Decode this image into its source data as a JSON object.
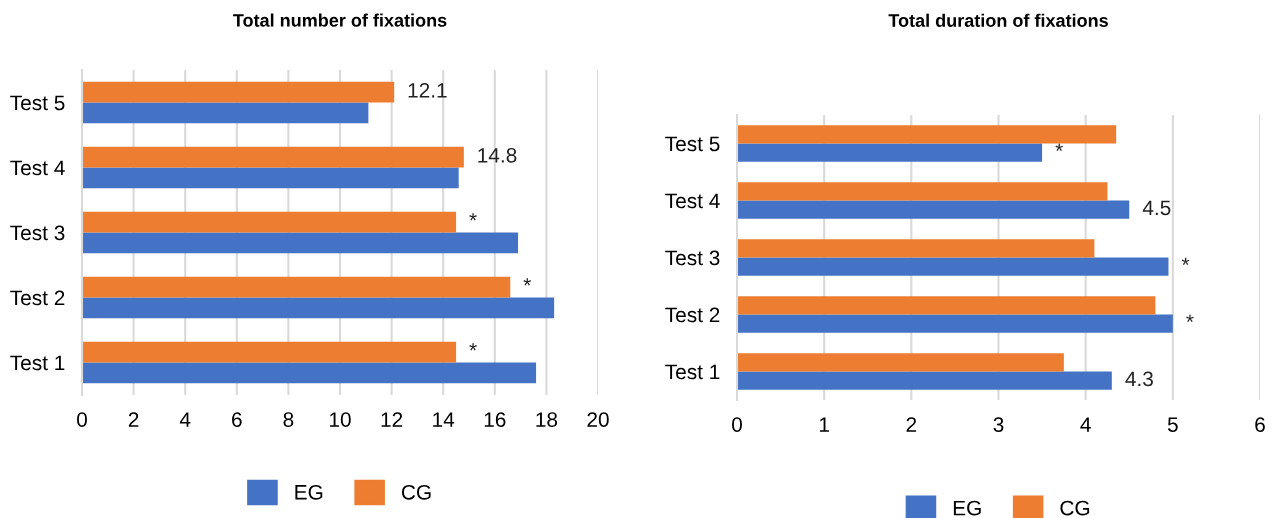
{
  "chart_data": [
    {
      "type": "bar",
      "orientation": "horizontal",
      "title": "Total number of fixations",
      "categories": [
        "Test 5",
        "Test 4",
        "Test 3",
        "Test 2",
        "Test 1"
      ],
      "series": [
        {
          "name": "EG",
          "color": "#4472c4",
          "values": [
            11.1,
            14.6,
            16.9,
            18.3,
            17.6
          ]
        },
        {
          "name": "CG",
          "color": "#ed7d31",
          "values": [
            12.1,
            14.8,
            14.5,
            16.6,
            14.5
          ]
        }
      ],
      "xlim": [
        0,
        20
      ],
      "xticks": [
        0,
        2,
        4,
        6,
        8,
        10,
        12,
        14,
        16,
        18,
        20
      ],
      "grid": "x",
      "legend": "bottom",
      "annotations": [
        {
          "text": "12.1",
          "x": 12.1,
          "y": "Test 5"
        },
        {
          "text": "14.8",
          "x": 14.8,
          "y": "Test 4"
        },
        {
          "text": "*",
          "x": 14.5,
          "y": "Test 3"
        },
        {
          "text": "*",
          "x": 16.6,
          "y": "Test 2"
        },
        {
          "text": "*",
          "x": 14.5,
          "y": "Test 1"
        }
      ]
    },
    {
      "type": "bar",
      "orientation": "horizontal",
      "title": "Total duration of fixations",
      "categories": [
        "Test 5",
        "Test 4",
        "Test 3",
        "Test 2",
        "Test 1"
      ],
      "series": [
        {
          "name": "EG",
          "color": "#4472c4",
          "values": [
            3.5,
            4.5,
            4.95,
            5.0,
            4.3
          ]
        },
        {
          "name": "CG",
          "color": "#ed7d31",
          "values": [
            4.35,
            4.25,
            4.1,
            4.8,
            3.75
          ]
        }
      ],
      "xlim": [
        0,
        6
      ],
      "xticks": [
        0,
        1,
        2,
        3,
        4,
        5,
        6
      ],
      "grid": "x",
      "legend": "bottom",
      "annotations": [
        {
          "text": "*",
          "x": 3.5,
          "y": "Test 5"
        },
        {
          "text": "4.5",
          "x": 4.5,
          "y": "Test 4"
        },
        {
          "text": "*",
          "x": 4.95,
          "y": "Test 3"
        },
        {
          "text": "*",
          "x": 5.0,
          "y": "Test 2"
        },
        {
          "text": "4.3",
          "x": 4.3,
          "y": "Test 1"
        }
      ]
    }
  ]
}
